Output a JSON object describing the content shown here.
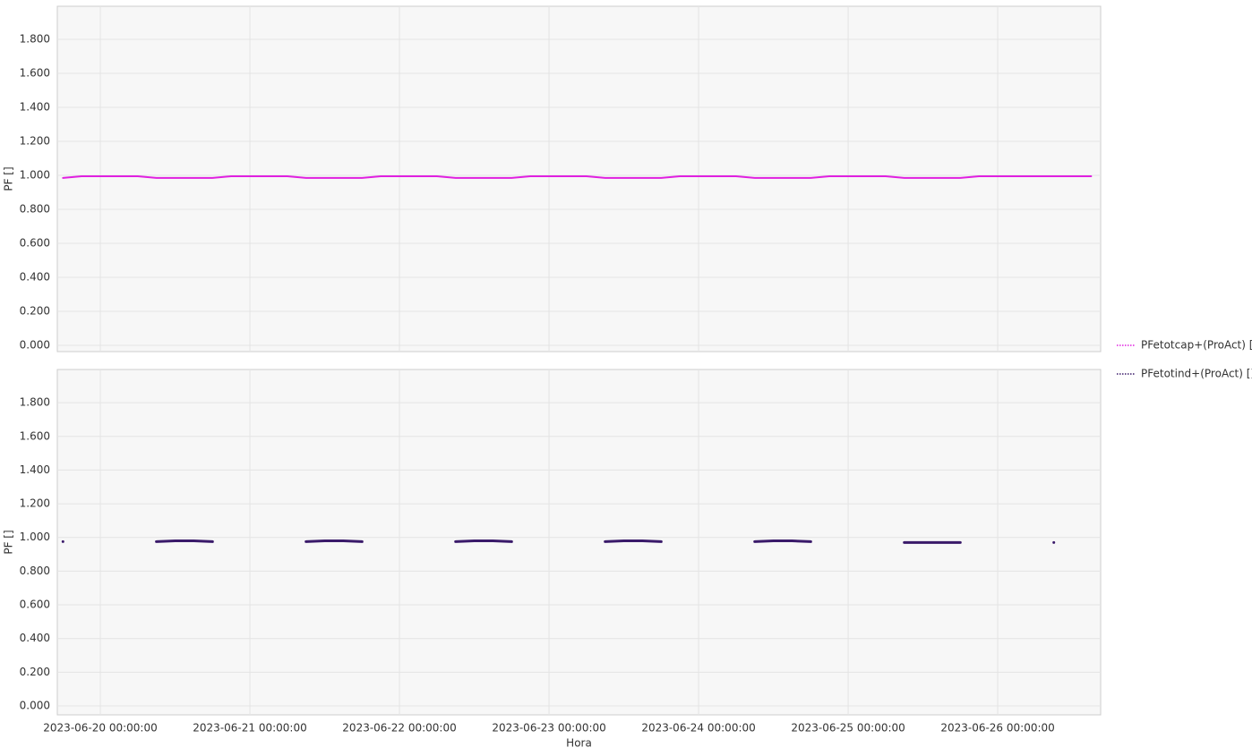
{
  "chart_data": [
    {
      "type": "line",
      "ylabel": "PF []",
      "x": [
        "2023-06-19 18:00:00",
        "2023-06-19 21:00:00",
        "2023-06-20 00:00:00",
        "2023-06-20 03:00:00",
        "2023-06-20 06:00:00",
        "2023-06-20 09:00:00",
        "2023-06-20 12:00:00",
        "2023-06-20 15:00:00",
        "2023-06-20 18:00:00",
        "2023-06-20 21:00:00",
        "2023-06-21 00:00:00",
        "2023-06-21 03:00:00",
        "2023-06-21 06:00:00",
        "2023-06-21 09:00:00",
        "2023-06-21 12:00:00",
        "2023-06-21 15:00:00",
        "2023-06-21 18:00:00",
        "2023-06-21 21:00:00",
        "2023-06-22 00:00:00",
        "2023-06-22 03:00:00",
        "2023-06-22 06:00:00",
        "2023-06-22 09:00:00",
        "2023-06-22 12:00:00",
        "2023-06-22 15:00:00",
        "2023-06-22 18:00:00",
        "2023-06-22 21:00:00",
        "2023-06-23 00:00:00",
        "2023-06-23 03:00:00",
        "2023-06-23 06:00:00",
        "2023-06-23 09:00:00",
        "2023-06-23 12:00:00",
        "2023-06-23 15:00:00",
        "2023-06-23 18:00:00",
        "2023-06-23 21:00:00",
        "2023-06-24 00:00:00",
        "2023-06-24 03:00:00",
        "2023-06-24 06:00:00",
        "2023-06-24 09:00:00",
        "2023-06-24 12:00:00",
        "2023-06-24 15:00:00",
        "2023-06-24 18:00:00",
        "2023-06-24 21:00:00",
        "2023-06-25 00:00:00",
        "2023-06-25 03:00:00",
        "2023-06-25 06:00:00",
        "2023-06-25 09:00:00",
        "2023-06-25 12:00:00",
        "2023-06-25 15:00:00",
        "2023-06-25 18:00:00",
        "2023-06-25 21:00:00",
        "2023-06-26 00:00:00",
        "2023-06-26 03:00:00",
        "2023-06-26 06:00:00",
        "2023-06-26 09:00:00",
        "2023-06-26 12:00:00",
        "2023-06-26 15:00:00"
      ],
      "series": [
        {
          "name": "PFetotcap+(ProAct) []",
          "color": "#e020e0",
          "values": [
            0.985,
            0.995,
            0.995,
            0.995,
            0.995,
            0.985,
            0.985,
            0.985,
            0.985,
            0.995,
            0.995,
            0.995,
            0.995,
            0.985,
            0.985,
            0.985,
            0.985,
            0.995,
            0.995,
            0.995,
            0.995,
            0.985,
            0.985,
            0.985,
            0.985,
            0.995,
            0.995,
            0.995,
            0.995,
            0.985,
            0.985,
            0.985,
            0.985,
            0.995,
            0.995,
            0.995,
            0.995,
            0.985,
            0.985,
            0.985,
            0.985,
            0.995,
            0.995,
            0.995,
            0.995,
            0.985,
            0.985,
            0.985,
            0.985,
            0.995,
            0.995,
            0.995,
            0.995,
            0.995,
            0.995,
            0.995
          ]
        }
      ],
      "ylim": [
        -0.037,
        1.995
      ],
      "yticks": [
        {
          "value": 0,
          "label": "0.000"
        },
        {
          "value": 0.2,
          "label": "0.200"
        },
        {
          "value": 0.4,
          "label": "0.400"
        },
        {
          "value": 0.6,
          "label": "0.600"
        },
        {
          "value": 0.8,
          "label": "0.800"
        },
        {
          "value": 1,
          "label": "1.000"
        },
        {
          "value": 1.2,
          "label": "1.200"
        },
        {
          "value": 1.4,
          "label": "1.400"
        },
        {
          "value": 1.6,
          "label": "1.600"
        },
        {
          "value": 1.8,
          "label": "1.800"
        }
      ],
      "grid": true
    },
    {
      "type": "line",
      "ylabel": "PF []",
      "xlabel": "Hora",
      "x": [
        "2023-06-19 18:00:00",
        "2023-06-19 21:00:00",
        "2023-06-20 00:00:00",
        "2023-06-20 03:00:00",
        "2023-06-20 06:00:00",
        "2023-06-20 09:00:00",
        "2023-06-20 12:00:00",
        "2023-06-20 15:00:00",
        "2023-06-20 18:00:00",
        "2023-06-20 21:00:00",
        "2023-06-21 00:00:00",
        "2023-06-21 03:00:00",
        "2023-06-21 06:00:00",
        "2023-06-21 09:00:00",
        "2023-06-21 12:00:00",
        "2023-06-21 15:00:00",
        "2023-06-21 18:00:00",
        "2023-06-21 21:00:00",
        "2023-06-22 00:00:00",
        "2023-06-22 03:00:00",
        "2023-06-22 06:00:00",
        "2023-06-22 09:00:00",
        "2023-06-22 12:00:00",
        "2023-06-22 15:00:00",
        "2023-06-22 18:00:00",
        "2023-06-22 21:00:00",
        "2023-06-23 00:00:00",
        "2023-06-23 03:00:00",
        "2023-06-23 06:00:00",
        "2023-06-23 09:00:00",
        "2023-06-23 12:00:00",
        "2023-06-23 15:00:00",
        "2023-06-23 18:00:00",
        "2023-06-23 21:00:00",
        "2023-06-24 00:00:00",
        "2023-06-24 03:00:00",
        "2023-06-24 06:00:00",
        "2023-06-24 09:00:00",
        "2023-06-24 12:00:00",
        "2023-06-24 15:00:00",
        "2023-06-24 18:00:00",
        "2023-06-24 21:00:00",
        "2023-06-25 00:00:00",
        "2023-06-25 03:00:00",
        "2023-06-25 06:00:00",
        "2023-06-25 09:00:00",
        "2023-06-25 12:00:00",
        "2023-06-25 15:00:00",
        "2023-06-25 18:00:00",
        "2023-06-25 21:00:00",
        "2023-06-26 00:00:00",
        "2023-06-26 03:00:00",
        "2023-06-26 06:00:00",
        "2023-06-26 09:00:00",
        "2023-06-26 12:00:00",
        "2023-06-26 15:00:00"
      ],
      "series": [
        {
          "name": "PFetotind+(ProAct) []",
          "color": "#3a1a6a",
          "values": [
            0.975,
            null,
            null,
            null,
            null,
            0.975,
            0.98,
            0.98,
            0.975,
            null,
            null,
            null,
            null,
            0.975,
            0.98,
            0.98,
            0.975,
            null,
            null,
            null,
            null,
            0.975,
            0.98,
            0.98,
            0.975,
            null,
            null,
            null,
            null,
            0.975,
            0.98,
            0.98,
            0.975,
            null,
            null,
            null,
            null,
            0.975,
            0.98,
            0.98,
            0.975,
            null,
            null,
            null,
            null,
            0.97,
            0.97,
            0.97,
            0.97,
            null,
            null,
            null,
            null,
            0.97,
            null,
            null
          ]
        }
      ],
      "xlim": [
        "2023-06-19 17:06:00",
        "2023-06-26 16:31:00"
      ],
      "xticks": [
        {
          "value": "2023-06-20 00:00:00",
          "label": "2023-06-20 00:00:00"
        },
        {
          "value": "2023-06-21 00:00:00",
          "label": "2023-06-21 00:00:00"
        },
        {
          "value": "2023-06-22 00:00:00",
          "label": "2023-06-22 00:00:00"
        },
        {
          "value": "2023-06-23 00:00:00",
          "label": "2023-06-23 00:00:00"
        },
        {
          "value": "2023-06-24 00:00:00",
          "label": "2023-06-24 00:00:00"
        },
        {
          "value": "2023-06-25 00:00:00",
          "label": "2023-06-25 00:00:00"
        },
        {
          "value": "2023-06-26 00:00:00",
          "label": "2023-06-26 00:00:00"
        }
      ],
      "ylim": [
        -0.053,
        1.997
      ],
      "yticks": [
        {
          "value": 0,
          "label": "0.000"
        },
        {
          "value": 0.2,
          "label": "0.200"
        },
        {
          "value": 0.4,
          "label": "0.400"
        },
        {
          "value": 0.6,
          "label": "0.600"
        },
        {
          "value": 0.8,
          "label": "0.800"
        },
        {
          "value": 1,
          "label": "1.000"
        },
        {
          "value": 1.2,
          "label": "1.200"
        },
        {
          "value": 1.4,
          "label": "1.400"
        },
        {
          "value": 1.6,
          "label": "1.600"
        },
        {
          "value": 1.8,
          "label": "1.800"
        }
      ],
      "grid": true,
      "legend": "right"
    }
  ]
}
